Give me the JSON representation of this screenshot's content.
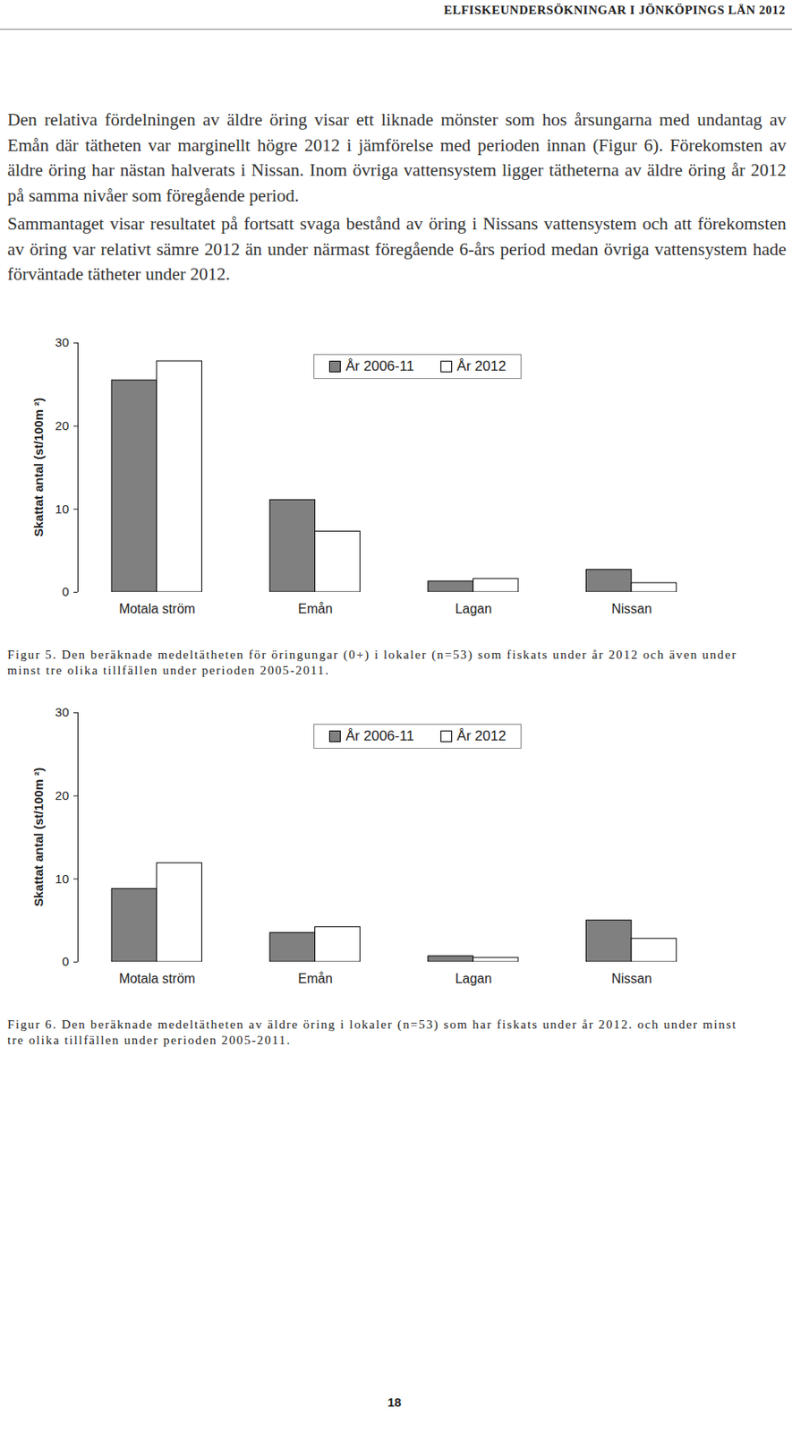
{
  "header": "ELFISKEUNDERSÖKNINGAR I JÖNKÖPINGS LÄN 2012",
  "paragraphs": [
    "Den relativa fördelningen av äldre öring visar ett liknade mönster som hos årsungarna med undantag av Emån där tätheten var marginellt högre 2012 i jämförelse med perioden innan (Figur 6). Förekomsten av äldre öring har nästan halverats i Nissan. Inom övriga vattensystem ligger tätheterna av äldre öring år 2012 på samma nivåer som föregående period.",
    "Sammantaget visar resultatet på fortsatt svaga bestånd av öring i Nissans vattensystem och att förekomsten av öring var relativt sämre 2012 än under närmast föregående 6-års period medan övriga vattensystem hade förväntade tätheter under 2012."
  ],
  "chart_data": [
    {
      "type": "bar",
      "categories": [
        "Motala ström",
        "Emån",
        "Lagan",
        "Nissan"
      ],
      "series": [
        {
          "name": "År 2006-11",
          "color": "#808080",
          "values": [
            25.5,
            11.1,
            1.3,
            2.7
          ]
        },
        {
          "name": "År 2012",
          "color": "#ffffff",
          "values": [
            27.8,
            7.3,
            1.6,
            1.1
          ]
        }
      ],
      "ylabel": "Skattat antal (st/100m ²)",
      "ylim": [
        0,
        30
      ],
      "yticks": [
        0,
        10,
        20,
        30
      ],
      "legend": "top",
      "caption": "Figur 5. Den beräknade medeltätheten för öringungar (0+) i lokaler (n=53) som fiskats under år 2012 och även under minst tre olika tillfällen under perioden 2005-2011."
    },
    {
      "type": "bar",
      "categories": [
        "Motala ström",
        "Emån",
        "Lagan",
        "Nissan"
      ],
      "series": [
        {
          "name": "År 2006-11",
          "color": "#808080",
          "values": [
            8.8,
            3.5,
            0.7,
            5.0
          ]
        },
        {
          "name": "År 2012",
          "color": "#ffffff",
          "values": [
            11.9,
            4.2,
            0.5,
            2.8
          ]
        }
      ],
      "ylabel": "Skattat antal (st/100m ²)",
      "ylim": [
        0,
        30
      ],
      "yticks": [
        0,
        10,
        20,
        30
      ],
      "legend": "top",
      "caption": "Figur 6. Den beräknade medeltätheten av äldre öring i lokaler (n=53) som har fiskats under år 2012. och under minst tre olika tillfällen under perioden 2005-2011."
    }
  ],
  "page_number": "18"
}
